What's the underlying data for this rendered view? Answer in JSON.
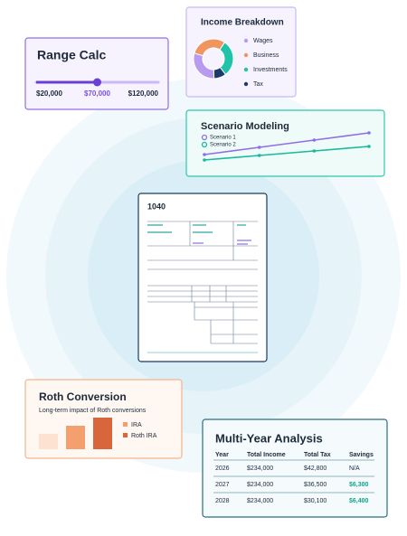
{
  "range_calc": {
    "title": "Range Calc",
    "min": {
      "value": 20000,
      "label": "$20,000"
    },
    "current": {
      "value": 70000,
      "label": "$70,000"
    },
    "max": {
      "value": 120000,
      "label": "$120,000"
    }
  },
  "income_breakdown": {
    "title": "Income Breakdown",
    "type": "pie",
    "categories": [
      "Wages",
      "Business",
      "Investments",
      "Tax"
    ],
    "values": [
      30,
      30,
      30,
      10
    ],
    "colors": [
      "#b89af0",
      "#f0955e",
      "#1fc4a8",
      "#1d3a6b"
    ]
  },
  "scenario_modeling": {
    "title": "Scenario Modeling",
    "type": "line",
    "x": [
      0,
      1,
      2,
      3
    ],
    "xlim": [
      0,
      3
    ],
    "ylim": [
      0,
      10
    ],
    "series": [
      {
        "name": "Scenario 1",
        "color": "#8f6fe6",
        "values": [
          4.2,
          5.8,
          7.4,
          9.0
        ]
      },
      {
        "name": "Scenario 2",
        "color": "#19b99c",
        "values": [
          3.0,
          4.0,
          5.0,
          6.0
        ]
      }
    ]
  },
  "form": {
    "title": "1040"
  },
  "roth_conversion": {
    "title": "Roth Conversion",
    "subtitle": "Long-term impact of Roth conversions",
    "type": "bar",
    "ylim": [
      0,
      40
    ],
    "values": [
      17,
      26,
      35
    ],
    "colors": [
      "#fde1d1",
      "#f4a06e",
      "#d9663a"
    ],
    "legend": [
      {
        "name": "IRA",
        "color": "#f4a06e"
      },
      {
        "name": "Roth IRA",
        "color": "#d9663a"
      }
    ]
  },
  "multi_year_analysis": {
    "title": "Multi-Year Analysis",
    "columns": [
      "Year",
      "Total Income",
      "Total Tax",
      "Savings"
    ],
    "rows": [
      [
        "2026",
        "$234,000",
        "$42,800",
        "N/A"
      ],
      [
        "2027",
        "$234,000",
        "$36,500",
        "$6,300"
      ],
      [
        "2028",
        "$234,000",
        "$30,100",
        "$6,400"
      ]
    ]
  }
}
